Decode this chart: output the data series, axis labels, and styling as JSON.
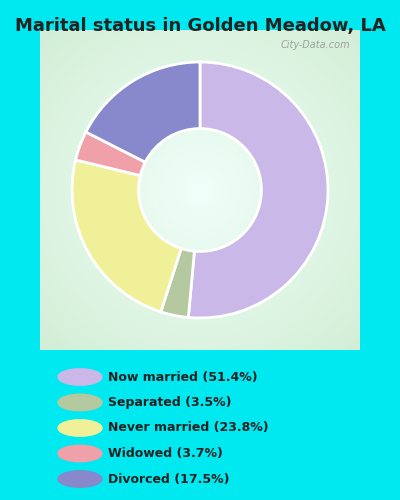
{
  "title": "Marital status in Golden Meadow, LA",
  "categories": [
    "Now married",
    "Separated",
    "Never married",
    "Widowed",
    "Divorced"
  ],
  "values": [
    51.4,
    3.5,
    23.8,
    3.7,
    17.5
  ],
  "colors": [
    "#c9b8e8",
    "#b5c9a0",
    "#f0f099",
    "#f0a0a8",
    "#8888cc"
  ],
  "legend_labels": [
    "Now married (51.4%)",
    "Separated (3.5%)",
    "Never married (23.8%)",
    "Widowed (3.7%)",
    "Divorced (17.5%)"
  ],
  "bg_color": "#00e8f0",
  "chart_bg_center": "#f0fff8",
  "chart_bg_edge": "#c8e8c8",
  "title_fontsize": 13,
  "watermark": "City-Data.com",
  "startangle": 90
}
